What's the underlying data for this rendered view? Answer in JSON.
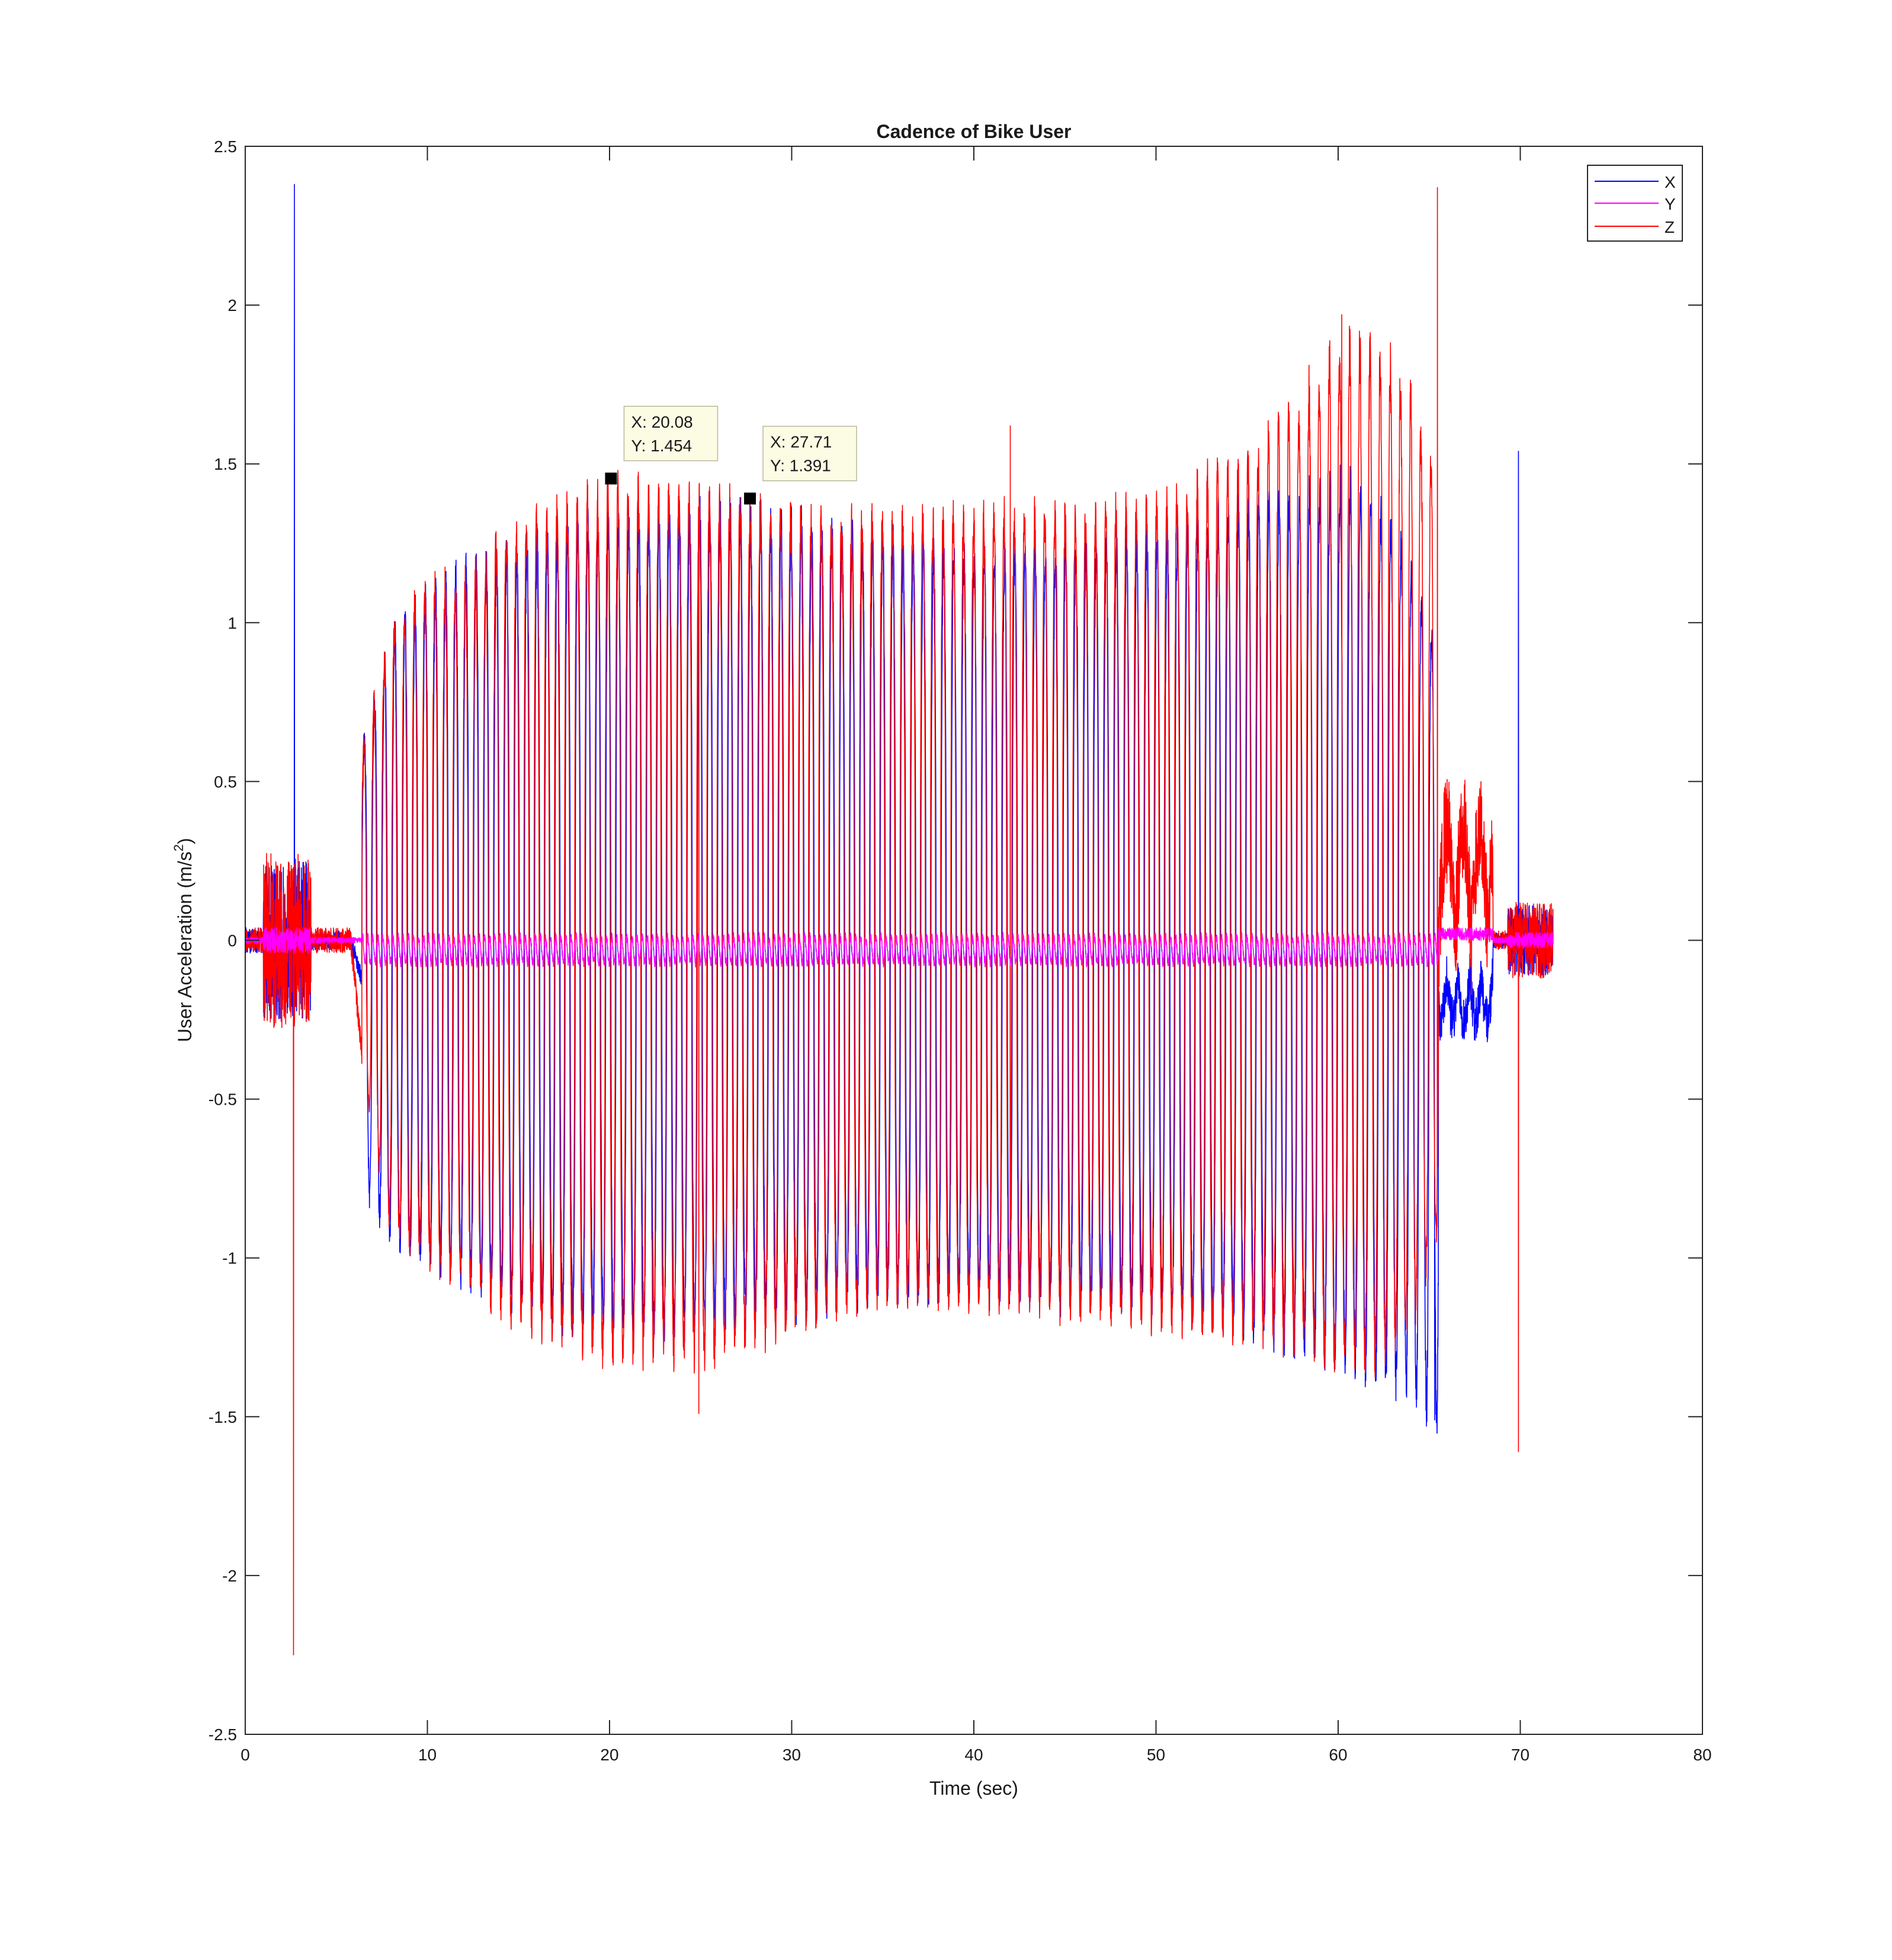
{
  "chart_data": {
    "type": "line",
    "title": "Cadence of Bike User",
    "xlabel": "Time (sec)",
    "ylabel": "User Acceleration (m/s",
    "ylabel_sup": "2",
    "ylabel_tail": ")",
    "xlim": [
      0,
      80
    ],
    "ylim": [
      -2.5,
      2.5
    ],
    "xticks": [
      0,
      10,
      20,
      30,
      40,
      50,
      60,
      70,
      80
    ],
    "xtick_labels": [
      "0",
      "10",
      "20",
      "30",
      "40",
      "50",
      "60",
      "70",
      "80"
    ],
    "yticks": [
      2.5,
      2,
      1.5,
      1,
      0.5,
      0,
      -0.5,
      -1,
      -1.5,
      -2,
      -2.5
    ],
    "ytick_labels": [
      "2.5",
      "2",
      "1.5",
      "1",
      "0.5",
      "0",
      "-0.5",
      "-1",
      "-1.5",
      "-2",
      "-2.5"
    ],
    "grid": false,
    "legend_position": "top-right",
    "series": [
      {
        "name": "X",
        "color": "#0000ff"
      },
      {
        "name": "Y",
        "color": "#ff00ff"
      },
      {
        "name": "Z",
        "color": "#ff0000"
      }
    ],
    "signal": {
      "pedal_start": 6.4,
      "pedal_end": 65.5,
      "pedal_period": 0.558,
      "x_envelope_max": [
        [
          6.4,
          0.6
        ],
        [
          8,
          0.95
        ],
        [
          10,
          1.08
        ],
        [
          12,
          1.15
        ],
        [
          14,
          1.2
        ],
        [
          16,
          1.25
        ],
        [
          18,
          1.28
        ],
        [
          20,
          1.3
        ],
        [
          25,
          1.35
        ],
        [
          30,
          1.3
        ],
        [
          35,
          1.25
        ],
        [
          40,
          1.2
        ],
        [
          45,
          1.22
        ],
        [
          50,
          1.25
        ],
        [
          55,
          1.35
        ],
        [
          58,
          1.4
        ],
        [
          61,
          1.42
        ],
        [
          63,
          1.3
        ],
        [
          65.5,
          0.9
        ]
      ],
      "x_envelope_min": [
        [
          6.4,
          -0.75
        ],
        [
          8,
          -0.92
        ],
        [
          10,
          -1.0
        ],
        [
          12,
          -1.05
        ],
        [
          14,
          -1.1
        ],
        [
          16,
          -1.15
        ],
        [
          18,
          -1.2
        ],
        [
          20,
          -1.2
        ],
        [
          25,
          -1.2
        ],
        [
          30,
          -1.15
        ],
        [
          35,
          -1.1
        ],
        [
          40,
          -1.1
        ],
        [
          45,
          -1.12
        ],
        [
          50,
          -1.12
        ],
        [
          55,
          -1.2
        ],
        [
          60,
          -1.3
        ],
        [
          62,
          -1.35
        ],
        [
          64,
          -1.4
        ],
        [
          65.5,
          -1.5
        ]
      ],
      "z_envelope_max": [
        [
          6.4,
          0.6
        ],
        [
          8,
          0.95
        ],
        [
          10,
          1.1
        ],
        [
          12,
          1.12
        ],
        [
          14,
          1.25
        ],
        [
          16,
          1.3
        ],
        [
          18,
          1.35
        ],
        [
          20,
          1.4
        ],
        [
          25,
          1.38
        ],
        [
          30,
          1.32
        ],
        [
          35,
          1.3
        ],
        [
          40,
          1.33
        ],
        [
          45,
          1.32
        ],
        [
          50,
          1.35
        ],
        [
          55,
          1.5
        ],
        [
          57,
          1.6
        ],
        [
          60,
          1.85
        ],
        [
          62,
          1.85
        ],
        [
          64,
          1.7
        ],
        [
          65.5,
          1.4
        ]
      ],
      "z_envelope_min": [
        [
          6.4,
          -0.4
        ],
        [
          8,
          -0.9
        ],
        [
          10,
          -1.0
        ],
        [
          12,
          -1.05
        ],
        [
          14,
          -1.15
        ],
        [
          16,
          -1.2
        ],
        [
          18,
          -1.25
        ],
        [
          20,
          -1.28
        ],
        [
          25,
          -1.3
        ],
        [
          30,
          -1.2
        ],
        [
          35,
          -1.1
        ],
        [
          40,
          -1.12
        ],
        [
          45,
          -1.15
        ],
        [
          50,
          -1.18
        ],
        [
          55,
          -1.22
        ],
        [
          60,
          -1.3
        ],
        [
          62,
          -1.3
        ],
        [
          64,
          -1.2
        ],
        [
          65.5,
          -0.9
        ]
      ],
      "y_amplitude": 0.04,
      "y_offset": -0.03,
      "spikes": [
        {
          "series": "X",
          "x": 2.7,
          "y": 2.38
        },
        {
          "series": "Z",
          "x": 2.65,
          "y": -2.25
        },
        {
          "series": "Z",
          "x": 65.45,
          "y": 2.37
        },
        {
          "series": "X",
          "x": 69.9,
          "y": 1.54
        },
        {
          "series": "Z",
          "x": 69.9,
          "y": -1.61
        },
        {
          "series": "X",
          "x": 64.3,
          "y": -1.47
        },
        {
          "series": "X",
          "x": 65.3,
          "y": -1.51
        },
        {
          "series": "Z",
          "x": 24.9,
          "y": -1.49
        },
        {
          "series": "Z",
          "x": 60.2,
          "y": 1.97
        },
        {
          "series": "Z",
          "x": 42,
          "y": 1.62
        }
      ]
    },
    "datatips": [
      {
        "x": 20.08,
        "y": 1.454,
        "label_x": "X: 20.08",
        "label_y": "Y: 1.454"
      },
      {
        "x": 27.71,
        "y": 1.391,
        "label_x": "X: 27.71",
        "label_y": "Y: 1.391"
      }
    ]
  }
}
